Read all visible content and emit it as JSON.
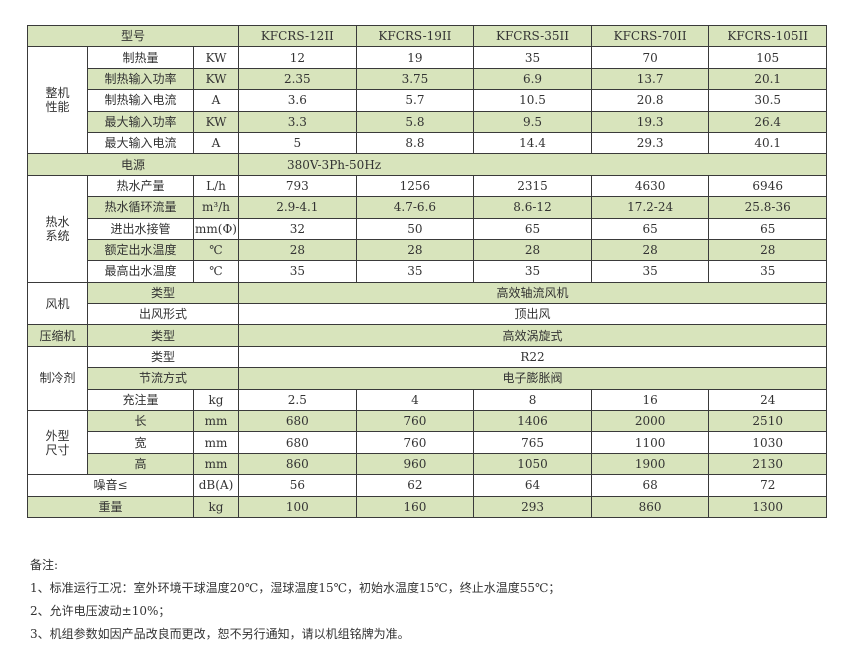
{
  "colors": {
    "row_highlight": "#d8e4bc",
    "border": "#3a3a3a"
  },
  "table": {
    "header": {
      "label": "型号",
      "models": [
        "KFCRS-12II",
        "KFCRS-19II",
        "KFCRS-35II",
        "KFCRS-70II",
        "KFCRS-105II"
      ]
    },
    "performance": {
      "group": "整机\n性能",
      "rows": [
        {
          "label": "制热量",
          "unit": "KW",
          "values": [
            "12",
            "19",
            "35",
            "70",
            "105"
          ],
          "green": false
        },
        {
          "label": "制热输入功率",
          "unit": "KW",
          "values": [
            "2.35",
            "3.75",
            "6.9",
            "13.7",
            "20.1"
          ],
          "green": true
        },
        {
          "label": "制热输入电流",
          "unit": "A",
          "values": [
            "3.6",
            "5.7",
            "10.5",
            "20.8",
            "30.5"
          ],
          "green": false
        },
        {
          "label": "最大输入功率",
          "unit": "KW",
          "values": [
            "3.3",
            "5.8",
            "9.5",
            "19.3",
            "26.4"
          ],
          "green": true
        },
        {
          "label": "最大输入电流",
          "unit": "A",
          "values": [
            "5",
            "8.8",
            "14.4",
            "29.3",
            "40.1"
          ],
          "green": false
        }
      ]
    },
    "power": {
      "label": "电源",
      "value": "380V-3Ph-50Hz"
    },
    "hot_water": {
      "group": "热水\n系统",
      "rows": [
        {
          "label": "热水产量",
          "unit": "L/h",
          "values": [
            "793",
            "1256",
            "2315",
            "4630",
            "6946"
          ],
          "green": false
        },
        {
          "label": "热水循环流量",
          "unit": "m³/h",
          "values": [
            "2.9-4.1",
            "4.7-6.6",
            "8.6-12",
            "17.2-24",
            "25.8-36"
          ],
          "green": true
        },
        {
          "label": "进出水接管",
          "unit": "mm(Φ)",
          "values": [
            "32",
            "50",
            "65",
            "65",
            "65"
          ],
          "green": false
        },
        {
          "label": "额定出水温度",
          "unit": "℃",
          "values": [
            "28",
            "28",
            "28",
            "28",
            "28"
          ],
          "green": true
        },
        {
          "label": "最高出水温度",
          "unit": "℃",
          "values": [
            "35",
            "35",
            "35",
            "35",
            "35"
          ],
          "green": false
        }
      ]
    },
    "fan": {
      "group": "风机",
      "rows": [
        {
          "label": "类型",
          "value": "高效轴流风机",
          "green": true
        },
        {
          "label": "出风形式",
          "value": "顶出风",
          "green": false
        }
      ]
    },
    "compressor": {
      "group": "压缩机",
      "rows": [
        {
          "label": "类型",
          "value": "高效涡旋式",
          "green": true
        }
      ]
    },
    "refrigerant": {
      "group": "制冷剂",
      "rows": [
        {
          "label": "类型",
          "value": "R22",
          "green": false
        },
        {
          "label": "节流方式",
          "value": "电子膨胀阀",
          "green": true
        },
        {
          "label": "充注量",
          "unit": "kg",
          "values": [
            "2.5",
            "4",
            "8",
            "16",
            "24"
          ],
          "green": false
        }
      ]
    },
    "dimensions": {
      "group": "外型\n尺寸",
      "rows": [
        {
          "label": "长",
          "unit": "mm",
          "values": [
            "680",
            "760",
            "1406",
            "2000",
            "2510"
          ],
          "green": true
        },
        {
          "label": "宽",
          "unit": "mm",
          "values": [
            "680",
            "760",
            "765",
            "1100",
            "1030"
          ],
          "green": false
        },
        {
          "label": "高",
          "unit": "mm",
          "values": [
            "860",
            "960",
            "1050",
            "1900",
            "2130"
          ],
          "green": true
        }
      ]
    },
    "noise": {
      "label": "噪音≤",
      "unit": "dB(A)",
      "values": [
        "56",
        "62",
        "64",
        "68",
        "72"
      ],
      "green": false
    },
    "weight": {
      "label": "重量",
      "unit": "kg",
      "values": [
        "100",
        "160",
        "293",
        "860",
        "1300"
      ],
      "green": true
    }
  },
  "notes": {
    "title": "备注:",
    "items": [
      "1、标准运行工况：室外环境干球温度20℃，湿球温度15℃，初始水温度15℃，终止水温度55℃；",
      "2、允许电压波动±10%；",
      "3、机组参数如因产品改良而更改，恕不另行通知，请以机组铭牌为准。"
    ]
  }
}
